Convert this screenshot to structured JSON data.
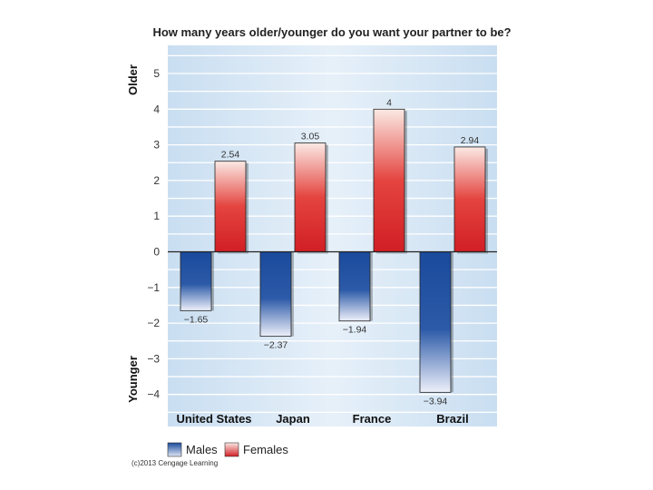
{
  "chart_data": {
    "type": "bar",
    "title": "How many years older/younger do you want your partner to be?",
    "categories": [
      "United States",
      "Japan",
      "France",
      "Brazil"
    ],
    "series": [
      {
        "name": "Males",
        "values": [
          -1.65,
          -2.37,
          -1.94,
          -3.94
        ],
        "labels": [
          "−1.65",
          "−2.37",
          "−1.94",
          "−3.94"
        ]
      },
      {
        "name": "Females",
        "values": [
          2.54,
          3.05,
          4,
          2.94
        ],
        "labels": [
          "2.54",
          "3.05",
          "4",
          "2.94"
        ]
      }
    ],
    "y_ticks": [
      5,
      4,
      3,
      2,
      1,
      0,
      -1,
      -2,
      -3,
      -4
    ],
    "y_tick_labels": [
      "5",
      "4",
      "3",
      "2",
      "1",
      "0",
      "−1",
      "−2",
      "−3",
      "−4"
    ],
    "ylim": [
      -4.5,
      5.5
    ],
    "ylabel_top": "Older",
    "ylabel_bottom": "Younger",
    "grid": true,
    "legend_position": "bottom-left"
  },
  "colors": {
    "males": "#1f4fa0",
    "females": "#d9262b",
    "background_band": "#d6e8f6",
    "grid_line": "#ffffff"
  },
  "credit": "(c)2013 Cengage Learning"
}
